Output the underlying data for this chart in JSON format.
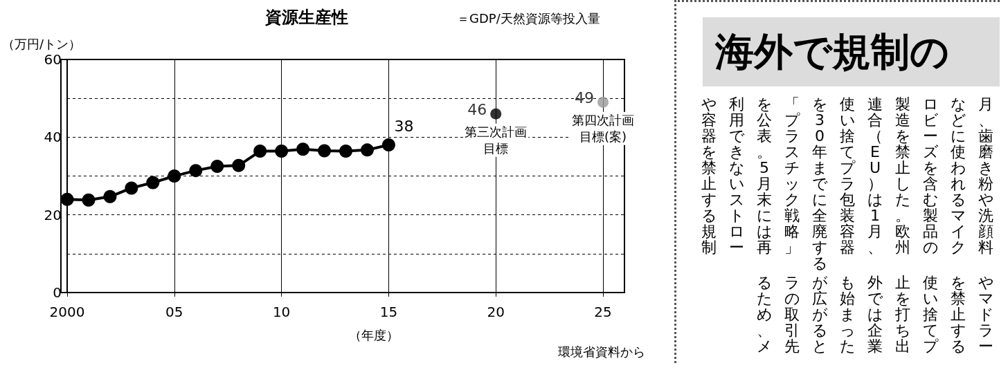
{
  "chart_data": [
    {
      "type": "line",
      "title": "資源生産性",
      "subtitle": "＝GDP/天然資源等投入量",
      "ylabel": "（万円/トン）",
      "xlabel": "（年度）",
      "xlim": [
        2000,
        2026
      ],
      "xticks": [
        {
          "value": 2000,
          "label": "2000"
        },
        {
          "value": 2005,
          "label": "05"
        },
        {
          "value": 2010,
          "label": "10"
        },
        {
          "value": 2015,
          "label": "15"
        },
        {
          "value": 2020,
          "label": "20"
        },
        {
          "value": 2025,
          "label": "25"
        }
      ],
      "ylim": [
        0,
        60
      ],
      "yticks": [
        0,
        {
          "value": 10,
          "label": null
        },
        20,
        {
          "value": 30,
          "label": null
        },
        40,
        {
          "value": 50,
          "label": null
        },
        60
      ],
      "grid": true,
      "marker": "circle",
      "line_style": "solid",
      "series": [
        {
          "color": "#000000",
          "x": [
            2000,
            2001,
            2002,
            2003,
            2004,
            2005,
            2006,
            2007,
            2008,
            2009,
            2010,
            2011,
            2012,
            2013,
            2014,
            2015
          ],
          "values": [
            24.0,
            23.8,
            24.7,
            26.9,
            28.3,
            30.0,
            31.4,
            32.5,
            32.7,
            36.4,
            36.4,
            36.9,
            36.5,
            36.4,
            36.7,
            38
          ],
          "value_labels": [
            null,
            null,
            null,
            null,
            null,
            null,
            null,
            null,
            null,
            null,
            null,
            null,
            null,
            null,
            null,
            "38"
          ]
        },
        {
          "type": "scatter",
          "color": "#000000",
          "x": [
            2020
          ],
          "values": [
            46
          ],
          "value_labels": [
            "46"
          ]
        },
        {
          "type": "scatter",
          "color": "#999999",
          "x": [
            2025
          ],
          "values": [
            49
          ],
          "value_labels": [
            "49"
          ]
        }
      ],
      "annotations": [
        {
          "text": "第三次計画目標",
          "x": 2020,
          "y": 46
        },
        {
          "text": "第四次計画目標(案)",
          "x": 2025,
          "y": 49
        },
        "環境省資料から"
      ]
    },
    {
      "type": "other",
      "title": "海外で規制の",
      "annotations": [
        "月、歯磨き粉や洗顔料",
        "などに使われるマイク",
        "ロビーズを含む製品の",
        "製造を禁止した。欧州",
        "連合（EU）は1月、",
        "使い捨てプラ包装容器",
        "を30年までに全廃する",
        "「プラスチック戦略」",
        "を公表。5月末には再",
        "利用できないストロー",
        "や容器を禁止する規制",
        "やマドラー",
        "を禁止する",
        "使い捨てプ",
        "止を打ち出",
        "外では企業",
        "も始まった",
        "が広がると",
        "ラの取引先",
        "るため、メ"
      ]
    }
  ]
}
